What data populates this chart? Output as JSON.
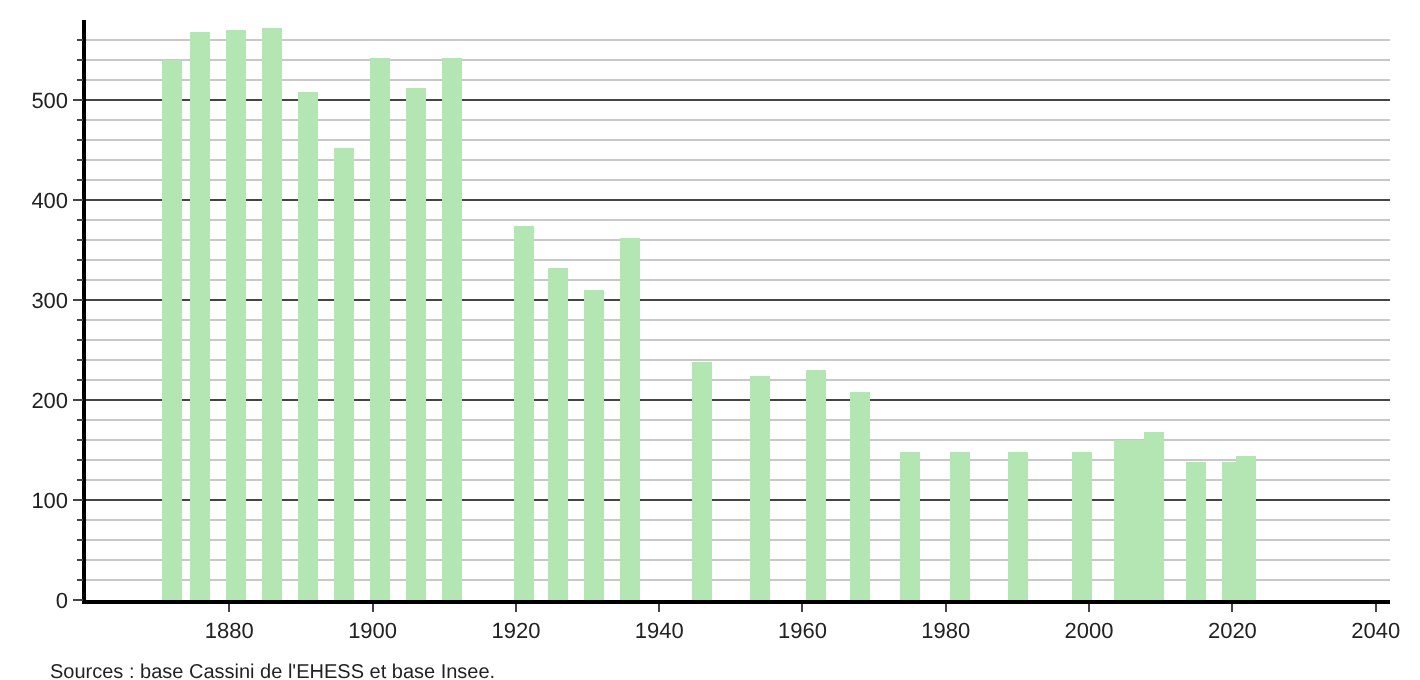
{
  "chart_data": {
    "type": "bar",
    "x": [
      1872,
      1876,
      1881,
      1886,
      1891,
      1896,
      1901,
      1906,
      1911,
      1921,
      1926,
      1931,
      1936,
      1946,
      1954,
      1962,
      1968,
      1975,
      1982,
      1990,
      1999,
      2005,
      2007,
      2009,
      2015,
      2020,
      2022
    ],
    "values": [
      540,
      569,
      571,
      572,
      508,
      452,
      542,
      513,
      542,
      374,
      332,
      310,
      362,
      238,
      224,
      230,
      208,
      148,
      148,
      148,
      148,
      160,
      160,
      168,
      139,
      139,
      144
    ],
    "color": "#b3e6b3",
    "xlim": [
      1860,
      2042
    ],
    "xticks": [
      1880,
      1900,
      1920,
      1940,
      1960,
      1980,
      2000,
      2020,
      2040
    ],
    "ylim": [
      0,
      580
    ],
    "yticks": [
      0,
      {
        "value": 20,
        "label": null
      },
      {
        "value": 40,
        "label": null
      },
      {
        "value": 60,
        "label": null
      },
      {
        "value": 80,
        "label": null
      },
      100,
      {
        "value": 120,
        "label": null
      },
      {
        "value": 140,
        "label": null
      },
      {
        "value": 160,
        "label": null
      },
      {
        "value": 180,
        "label": null
      },
      200,
      {
        "value": 220,
        "label": null
      },
      {
        "value": 240,
        "label": null
      },
      {
        "value": 260,
        "label": null
      },
      {
        "value": 280,
        "label": null
      },
      300,
      {
        "value": 320,
        "label": null
      },
      {
        "value": 340,
        "label": null
      },
      {
        "value": 360,
        "label": null
      },
      {
        "value": 380,
        "label": null
      },
      400,
      {
        "value": 420,
        "label": null
      },
      {
        "value": 440,
        "label": null
      },
      {
        "value": 460,
        "label": null
      },
      {
        "value": 480,
        "label": null
      },
      500,
      {
        "value": 520,
        "label": null
      },
      {
        "value": 540,
        "label": null
      },
      {
        "value": 560,
        "label": null
      }
    ],
    "grid": "y",
    "annotations": [
      "Sources : base Cassini de l'EHESS et base Insee."
    ]
  }
}
